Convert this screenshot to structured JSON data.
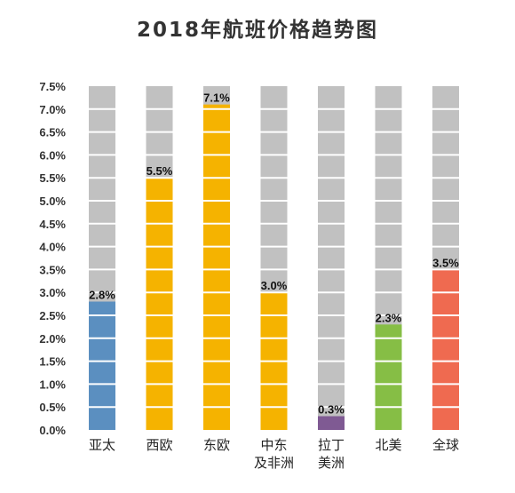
{
  "chart_data": {
    "type": "bar",
    "title": "2018年航班价格趋势图",
    "categories": [
      [
        "亚太"
      ],
      [
        "西欧"
      ],
      [
        "东欧"
      ],
      [
        "中东",
        "及非洲"
      ],
      [
        "拉丁",
        "美洲"
      ],
      [
        "北美"
      ],
      [
        "全球"
      ]
    ],
    "values": [
      2.8,
      5.5,
      7.1,
      3.0,
      0.3,
      2.3,
      3.5
    ],
    "value_labels": [
      "2.8%",
      "5.5%",
      "7.1%",
      "3.0%",
      "0.3%",
      "2.3%",
      "3.5%"
    ],
    "bar_colors": [
      "#5B8FC0",
      "#F5B300",
      "#F5B300",
      "#F5B300",
      "#7F5A93",
      "#86BE45",
      "#EF6A50"
    ],
    "background_bar_color": "#C1C1C1",
    "ylim": [
      0,
      7.5
    ],
    "yticks": [
      "0.0%",
      "0.5%",
      "1.0%",
      "1.5%",
      "2.0%",
      "2.5%",
      "3.0%",
      "3.5%",
      "4.0%",
      "4.5%",
      "5.0%",
      "5.5%",
      "6.0%",
      "6.5%",
      "7.0%",
      "7.5%"
    ],
    "xlabel": "",
    "ylabel": "",
    "grid": false,
    "legend": "none"
  }
}
